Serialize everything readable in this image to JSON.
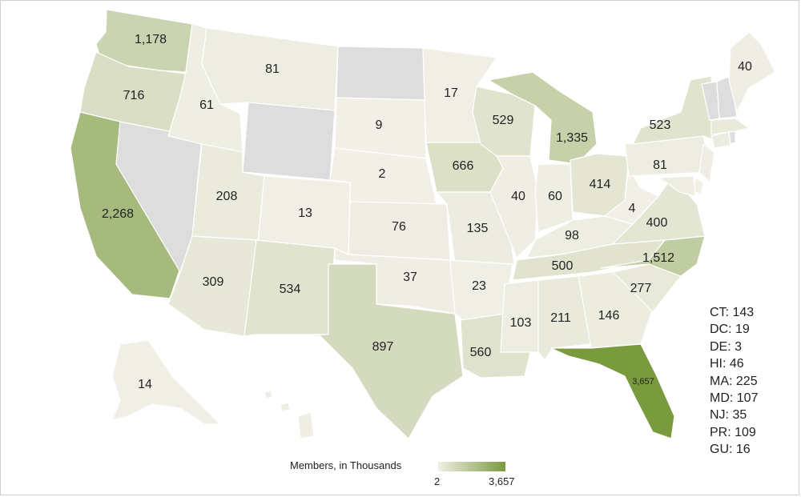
{
  "legend": {
    "title": "Members, in Thousands",
    "min_label": "2",
    "max_label": "3,657",
    "min_value": 2,
    "max_value": 3657,
    "color_low": "#f1efe6",
    "color_high": "#7a9a3e"
  },
  "no_data_color": "#dddddd",
  "states": [
    {
      "code": "WA",
      "value": 1178,
      "label": "1,178"
    },
    {
      "code": "OR",
      "value": 716,
      "label": "716"
    },
    {
      "code": "CA",
      "value": 2268,
      "label": "2,268"
    },
    {
      "code": "NV",
      "value": null,
      "label": ""
    },
    {
      "code": "ID",
      "value": 61,
      "label": "61"
    },
    {
      "code": "MT",
      "value": 81,
      "label": "81"
    },
    {
      "code": "WY",
      "value": null,
      "label": ""
    },
    {
      "code": "UT",
      "value": 208,
      "label": "208"
    },
    {
      "code": "AZ",
      "value": 309,
      "label": "309"
    },
    {
      "code": "CO",
      "value": 13,
      "label": "13"
    },
    {
      "code": "NM",
      "value": 534,
      "label": "534"
    },
    {
      "code": "ND",
      "value": null,
      "label": ""
    },
    {
      "code": "SD",
      "value": 9,
      "label": "9"
    },
    {
      "code": "NE",
      "value": 2,
      "label": "2"
    },
    {
      "code": "KS",
      "value": 76,
      "label": "76"
    },
    {
      "code": "OK",
      "value": 37,
      "label": "37"
    },
    {
      "code": "TX",
      "value": 897,
      "label": "897"
    },
    {
      "code": "MN",
      "value": 17,
      "label": "17"
    },
    {
      "code": "IA",
      "value": 666,
      "label": "666"
    },
    {
      "code": "MO",
      "value": 135,
      "label": "135"
    },
    {
      "code": "AR",
      "value": 23,
      "label": "23"
    },
    {
      "code": "LA",
      "value": 560,
      "label": "560"
    },
    {
      "code": "WI",
      "value": 529,
      "label": "529"
    },
    {
      "code": "IL",
      "value": 40,
      "label": "40"
    },
    {
      "code": "MI",
      "value": 1335,
      "label": "1,335"
    },
    {
      "code": "IN",
      "value": 60,
      "label": "60"
    },
    {
      "code": "OH",
      "value": 414,
      "label": "414"
    },
    {
      "code": "KY",
      "value": 98,
      "label": "98"
    },
    {
      "code": "TN",
      "value": 500,
      "label": "500"
    },
    {
      "code": "MS",
      "value": 103,
      "label": "103"
    },
    {
      "code": "AL",
      "value": 211,
      "label": "211"
    },
    {
      "code": "GA",
      "value": 146,
      "label": "146"
    },
    {
      "code": "FL",
      "value": 3657,
      "label": "3,657"
    },
    {
      "code": "SC",
      "value": 277,
      "label": "277"
    },
    {
      "code": "NC",
      "value": 1512,
      "label": "1,512"
    },
    {
      "code": "VA",
      "value": 400,
      "label": "400"
    },
    {
      "code": "WV",
      "value": 4,
      "label": "4"
    },
    {
      "code": "PA",
      "value": 81,
      "label": "81"
    },
    {
      "code": "NY",
      "value": 523,
      "label": "523"
    },
    {
      "code": "ME",
      "value": 40,
      "label": "40"
    },
    {
      "code": "VT",
      "value": null,
      "label": ""
    },
    {
      "code": "NH",
      "value": null,
      "label": ""
    },
    {
      "code": "MA",
      "value": 225,
      "label": ""
    },
    {
      "code": "CT",
      "value": 143,
      "label": ""
    },
    {
      "code": "RI",
      "value": null,
      "label": ""
    },
    {
      "code": "NJ",
      "value": 35,
      "label": ""
    },
    {
      "code": "DE",
      "value": 3,
      "label": ""
    },
    {
      "code": "MD",
      "value": 107,
      "label": ""
    },
    {
      "code": "AK",
      "value": 14,
      "label": "14"
    },
    {
      "code": "HI",
      "value": 46,
      "label": ""
    }
  ],
  "territories": [
    {
      "text": "CT: 143"
    },
    {
      "text": "DC: 19"
    },
    {
      "text": "DE: 3"
    },
    {
      "text": "HI: 46"
    },
    {
      "text": "MA: 225"
    },
    {
      "text": "MD: 107"
    },
    {
      "text": "NJ: 35"
    },
    {
      "text": "PR: 109"
    },
    {
      "text": "GU: 16"
    }
  ]
}
